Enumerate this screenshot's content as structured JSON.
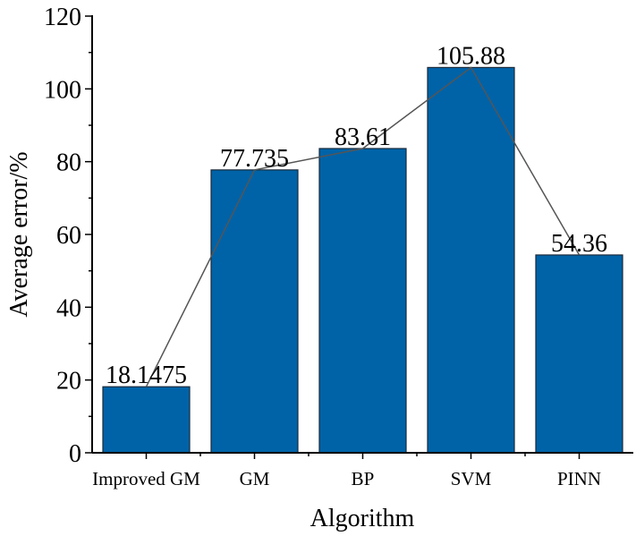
{
  "chart_data": {
    "type": "bar",
    "categories": [
      "Improved GM",
      "GM",
      "BP",
      "SVM",
      "PINN"
    ],
    "values": [
      18.1475,
      77.735,
      83.61,
      105.88,
      54.36
    ],
    "data_labels": [
      "18.1475",
      "77.735",
      "83.61",
      "105.88",
      "54.36"
    ],
    "xlabel": "Algorithm",
    "ylabel": "Average error/%",
    "ylim": [
      0,
      120
    ],
    "yticks": [
      0,
      20,
      40,
      60,
      80,
      100,
      120
    ],
    "grid": false,
    "overlay_line": true,
    "colors": {
      "bar": "#0063a8",
      "bar_edge": "#1a2a3a",
      "line": "#555555",
      "axis": "#000000"
    }
  }
}
